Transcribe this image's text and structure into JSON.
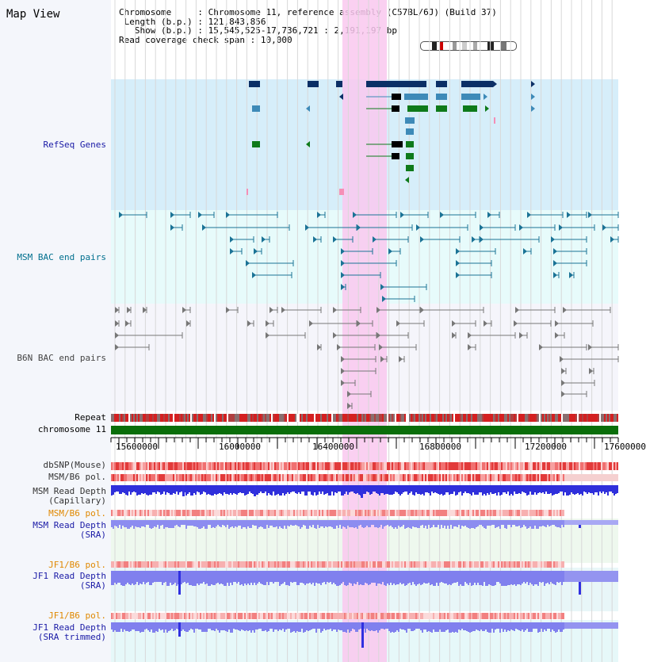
{
  "view_title": "Map View",
  "header": {
    "chromosome_key": "Chromosome",
    "chromosome_val": "Chromosome 11, reference assembly (C57BL/6J) (Build 37)",
    "length_key": "Length (b.p.)",
    "length_val": "121,843,856",
    "show_key": "Show (b.p.)",
    "show_val": "15,545,525-17,736,721 : 2,191,197 bp",
    "span_key": "Read coverage check span",
    "span_val": "10,000"
  },
  "tracks": {
    "refseq": "RefSeq Genes",
    "msm_bac": "MSM BAC end pairs",
    "b6n_bac": "B6N BAC end pairs",
    "repeat": "Repeat",
    "chromosome": "chromosome 11",
    "dbsnp": "dbSNP(Mouse)",
    "msm_b6_pol": "MSM/B6 pol.",
    "msm_depth_cap": "MSM Read Depth\n(Capillary)",
    "msm_b6_pol_sra": "MSM/B6 pol.",
    "msm_depth_sra": "MSM Read Depth\n(SRA)",
    "jf1_b6_pol": "JF1/B6 pol.",
    "jf1_depth_sra": "JF1 Read Depth\n(SRA)",
    "jf1_b6_pol_trim": "JF1/B6 pol.",
    "jf1_depth_trim": "JF1 Read Depth\n(SRA trimmed)"
  },
  "axis": {
    "ticks": [
      "15600000",
      "16000000",
      "16400000",
      "16800000",
      "17200000",
      "17600000"
    ]
  },
  "colors": {
    "refseq_label": "#1a1aa6",
    "msm_label": "#006f8e",
    "b6n_label": "#444444",
    "pol_orange": "#e08800",
    "depth_blue": "#1a1aa6",
    "highlight": "#f9c8ef"
  },
  "icons": [
    "chromosome-idiogram-icon"
  ]
}
